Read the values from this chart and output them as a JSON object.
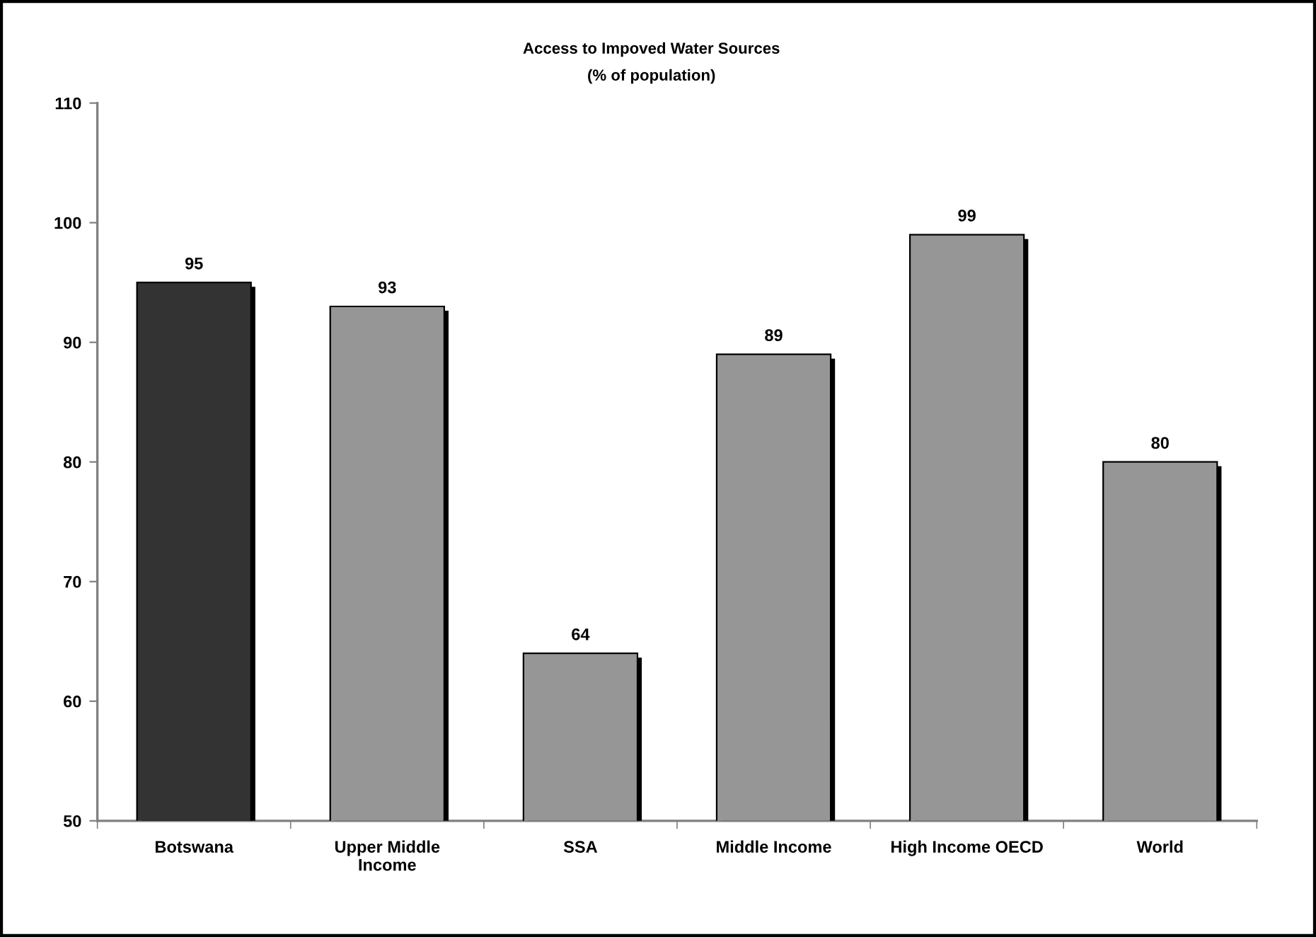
{
  "chart_data": {
    "type": "bar",
    "title": "Access to Impoved Water Sources",
    "subtitle": "(% of population)",
    "categories": [
      "Botswana",
      "Upper Middle\nIncome",
      "SSA",
      "Middle Income",
      "High Income OECD",
      "World"
    ],
    "values": [
      95,
      93,
      64,
      89,
      99,
      80
    ],
    "colors": [
      "#333333",
      "#969696",
      "#969696",
      "#969696",
      "#969696",
      "#969696"
    ],
    "ylim": [
      50,
      110
    ],
    "yticks": [
      50,
      60,
      70,
      80,
      90,
      100,
      110
    ],
    "grid": false,
    "legend": false,
    "data_labels": true
  }
}
